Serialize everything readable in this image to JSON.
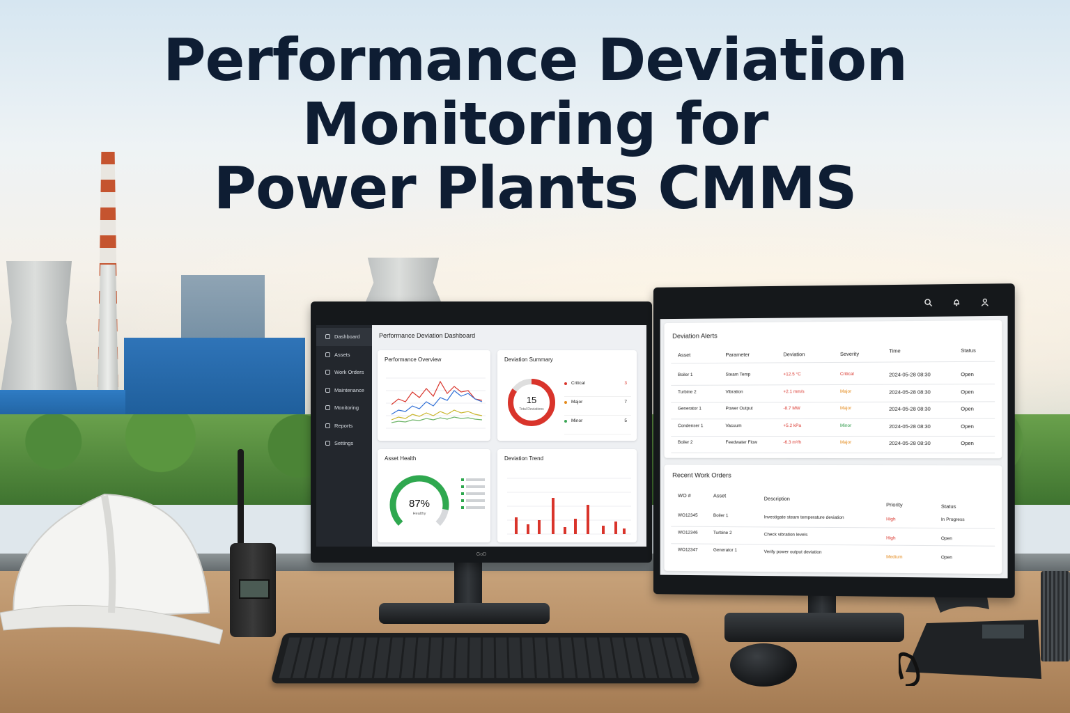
{
  "title": {
    "line1": "Performance Deviation",
    "line2": "Monitoring for",
    "line3": "Power Plants CMMS"
  },
  "left_screen": {
    "sidebar": {
      "items": [
        {
          "label": "Dashboard",
          "icon": "dashboard-icon",
          "active": true
        },
        {
          "label": "Assets",
          "icon": "assets-icon"
        },
        {
          "label": "Work Orders",
          "icon": "work-orders-icon"
        },
        {
          "label": "Maintenance",
          "icon": "maintenance-icon"
        },
        {
          "label": "Monitoring",
          "icon": "monitoring-icon"
        },
        {
          "label": "Reports",
          "icon": "reports-icon"
        },
        {
          "label": "Settings",
          "icon": "settings-icon"
        }
      ]
    },
    "dashboard_title": "Performance Deviation Dashboard",
    "performance_overview": {
      "title": "Performance Overview"
    },
    "deviation_summary": {
      "title": "Deviation Summary",
      "total": "15",
      "total_label": "Total Deviations",
      "items": [
        {
          "label": "Critical",
          "count": "3",
          "color": "#d9342b"
        },
        {
          "label": "Major",
          "count": "7",
          "color": "#e48a1c"
        },
        {
          "label": "Minor",
          "count": "5",
          "color": "#3aa655"
        }
      ]
    },
    "asset_health": {
      "title": "Asset Health",
      "value": "87%",
      "label": "Healthy",
      "fraction": 0.87
    },
    "deviation_trend": {
      "title": "Deviation Trend"
    }
  },
  "right_screen": {
    "deviation_alerts": {
      "title": "Deviation Alerts",
      "headers": [
        "Asset",
        "Parameter",
        "Deviation",
        "Severity",
        "Time",
        "Status"
      ],
      "rows": [
        {
          "asset": "Boiler 1",
          "parameter": "Steam Temp",
          "deviation": "+12.5 °C",
          "severity": "Critical",
          "time": "2024-05-28 08:30",
          "status": "Open"
        },
        {
          "asset": "Turbine 2",
          "parameter": "Vibration",
          "deviation": "+2.1 mm/s",
          "severity": "Major",
          "time": "2024-05-28 08:30",
          "status": "Open"
        },
        {
          "asset": "Generator 1",
          "parameter": "Power Output",
          "deviation": "-8.7 MW",
          "severity": "Major",
          "time": "2024-05-28 08:30",
          "status": "Open"
        },
        {
          "asset": "Condenser 1",
          "parameter": "Vacuum",
          "deviation": "+5.2 kPa",
          "severity": "Minor",
          "time": "2024-05-28 08:30",
          "status": "Open"
        },
        {
          "asset": "Boiler 2",
          "parameter": "Feedwater Flow",
          "deviation": "-6.3 m³/h",
          "severity": "Major",
          "time": "2024-05-28 08:30",
          "status": "Open"
        }
      ]
    },
    "work_orders": {
      "title": "Recent Work Orders",
      "headers": [
        "WO #",
        "Asset",
        "Description",
        "Priority",
        "Status"
      ],
      "rows": [
        {
          "wo": "WO12345",
          "asset": "Boiler 1",
          "description": "Investigate steam temperature deviation",
          "priority": "High",
          "status": "In Progress"
        },
        {
          "wo": "WO12346",
          "asset": "Turbine 2",
          "description": "Check vibration levels",
          "priority": "High",
          "status": "Open"
        },
        {
          "wo": "WO12347",
          "asset": "Generator 1",
          "description": "Verify power output deviation",
          "priority": "Medium",
          "status": "Open"
        }
      ]
    }
  },
  "colors": {
    "critical": "#d9342b",
    "major": "#e48a1c",
    "minor": "#2f9a4a",
    "deviation": "#d9342b",
    "title": "#0e1d33"
  },
  "monitor_brand": "GoD"
}
